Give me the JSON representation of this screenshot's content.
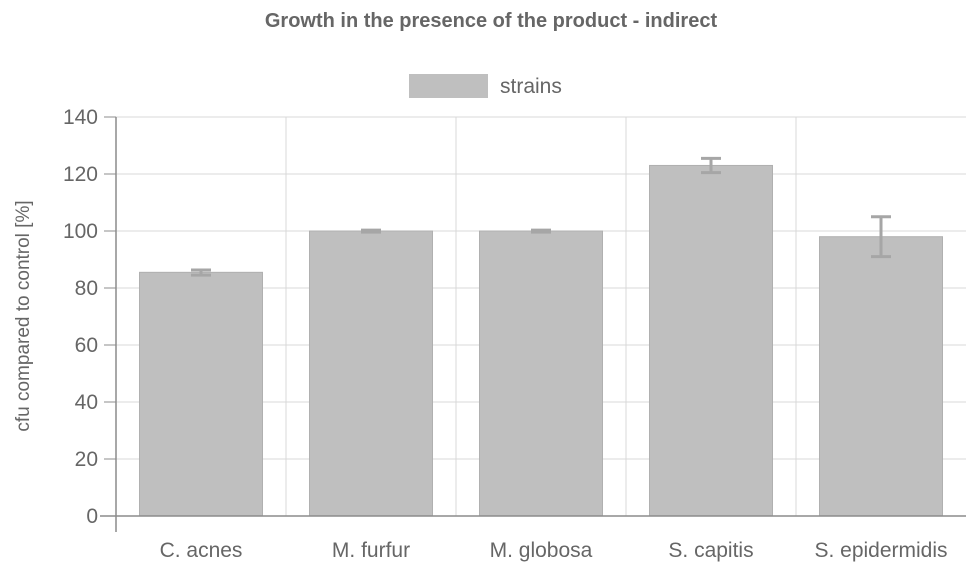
{
  "chart_data": {
    "type": "bar",
    "title": "Growth in the presence of the product - indirect",
    "xlabel": "",
    "ylabel": "cfu compared to control [%]",
    "ylim": [
      0,
      140
    ],
    "yticks": [
      0,
      20,
      40,
      60,
      80,
      100,
      120,
      140
    ],
    "ytick_labels": [
      "0",
      "20",
      "40",
      "60",
      "80",
      "100",
      "120",
      "140"
    ],
    "categories": [
      "C. acnes",
      "M. furfur",
      "M. globosa",
      "S. capitis",
      "S. epidermidis"
    ],
    "series": [
      {
        "name": "strains",
        "values": [
          85.5,
          100,
          100,
          123,
          98
        ],
        "error_low": [
          84.5,
          99.6,
          99.6,
          120.5,
          91
        ],
        "error_high": [
          86.3,
          100.3,
          100.3,
          125.5,
          105
        ]
      }
    ],
    "grid": true,
    "legend_position": "top-center",
    "colors": {
      "bar": "#bfbfbf",
      "bar_border": "#b0b0b0",
      "error_bar": "#a6a6a6",
      "grid": "#d9d9d9",
      "axis": "#8c8c8c",
      "text": "#666666"
    }
  }
}
